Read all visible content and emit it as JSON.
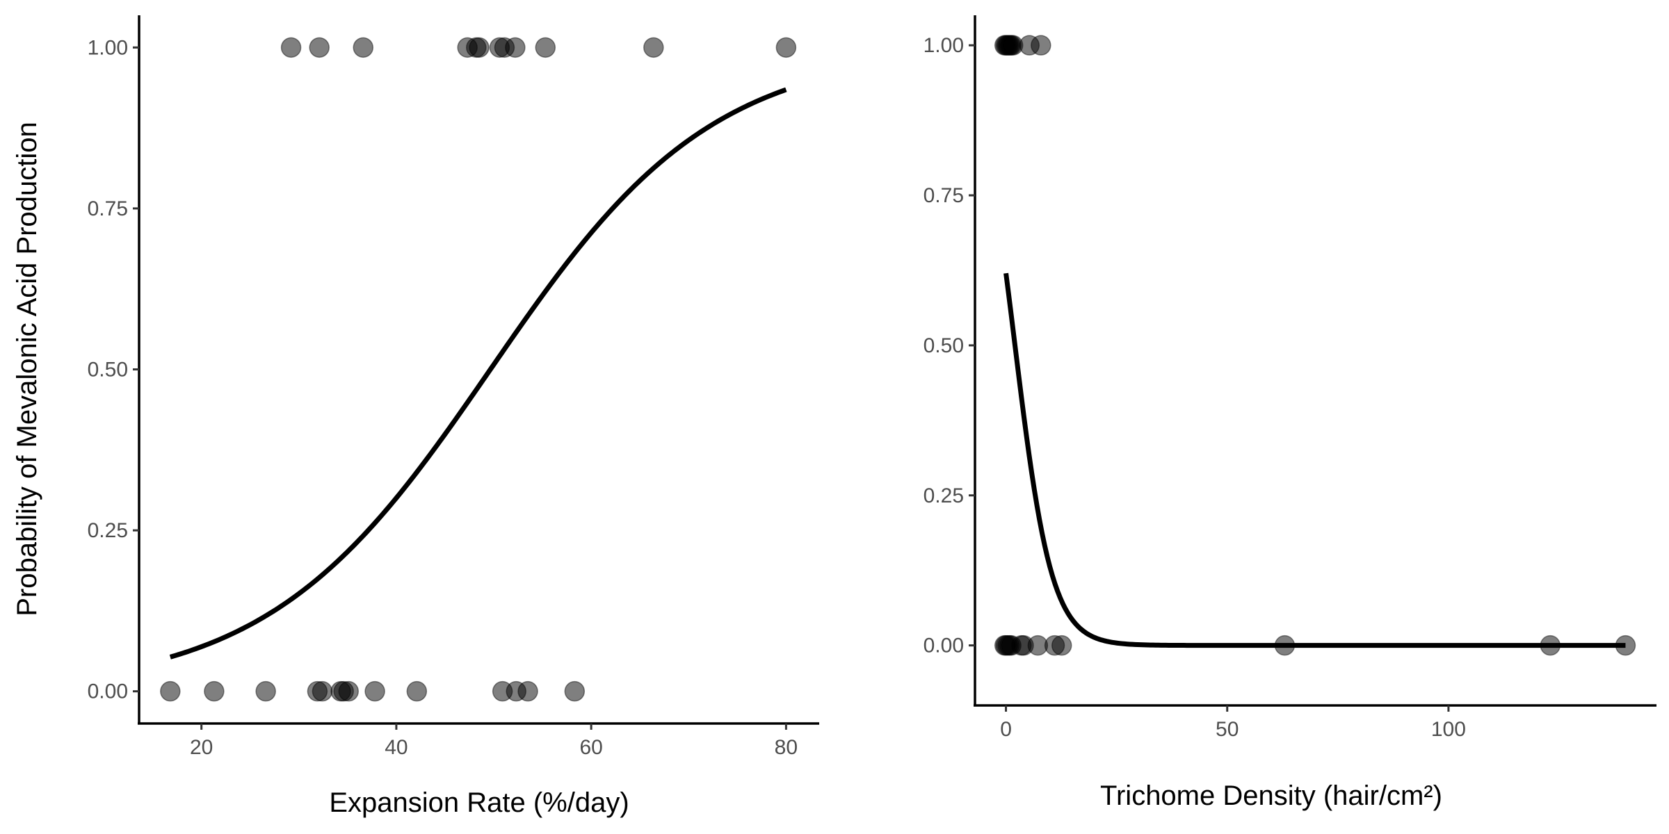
{
  "chart_data": [
    {
      "type": "scatter",
      "panel": "left",
      "xlabel": "Expansion Rate (%/day)",
      "ylabel": "Probability of Mevalonic Acid Production",
      "xlim": [
        13.6,
        83.4
      ],
      "ylim": [
        -0.05,
        1.05
      ],
      "x_ticks": [
        20,
        40,
        60,
        80
      ],
      "x_tick_labels": [
        "20",
        "40",
        "60",
        "80"
      ],
      "y_ticks": [
        0,
        0.25,
        0.5,
        0.75,
        1
      ],
      "y_tick_labels": [
        "0.00",
        "0.25",
        "0.50",
        "0.75",
        "1.00"
      ],
      "grid": false,
      "points": [
        {
          "x": 29.2,
          "y": 1
        },
        {
          "x": 32.1,
          "y": 1
        },
        {
          "x": 36.6,
          "y": 1
        },
        {
          "x": 47.3,
          "y": 1
        },
        {
          "x": 48.2,
          "y": 1
        },
        {
          "x": 48.5,
          "y": 1
        },
        {
          "x": 50.6,
          "y": 1
        },
        {
          "x": 51.1,
          "y": 1
        },
        {
          "x": 52.2,
          "y": 1
        },
        {
          "x": 55.3,
          "y": 1
        },
        {
          "x": 66.4,
          "y": 1
        },
        {
          "x": 80.0,
          "y": 1
        },
        {
          "x": 16.8,
          "y": 0
        },
        {
          "x": 21.3,
          "y": 0
        },
        {
          "x": 26.6,
          "y": 0
        },
        {
          "x": 31.9,
          "y": 0
        },
        {
          "x": 32.4,
          "y": 0
        },
        {
          "x": 34.3,
          "y": 0
        },
        {
          "x": 34.6,
          "y": 0
        },
        {
          "x": 35.1,
          "y": 0
        },
        {
          "x": 37.8,
          "y": 0
        },
        {
          "x": 42.1,
          "y": 0
        },
        {
          "x": 50.9,
          "y": 0
        },
        {
          "x": 52.3,
          "y": 0
        },
        {
          "x": 53.5,
          "y": 0
        },
        {
          "x": 58.3,
          "y": 0
        }
      ],
      "fit": {
        "type": "logistic",
        "intercept": -4.35,
        "slope": 0.0876,
        "x_range": [
          16.8,
          80.0
        ]
      }
    },
    {
      "type": "scatter",
      "panel": "right",
      "xlabel": "Trichome Density (hair/cm²)",
      "ylabel": "",
      "xlim": [
        -7.0,
        147.0
      ],
      "ylim": [
        -0.1,
        1.05
      ],
      "x_ticks": [
        0,
        50,
        100
      ],
      "x_tick_labels": [
        "0",
        "50",
        "100"
      ],
      "y_ticks": [
        0,
        0.25,
        0.5,
        0.75,
        1
      ],
      "y_tick_labels": [
        "0.00",
        "0.25",
        "0.50",
        "0.75",
        "1.00"
      ],
      "grid": false,
      "points": [
        {
          "x": -0.3,
          "y": 1
        },
        {
          "x": 0.0,
          "y": 1
        },
        {
          "x": 0.3,
          "y": 1
        },
        {
          "x": 0.6,
          "y": 1
        },
        {
          "x": 0.9,
          "y": 1
        },
        {
          "x": 1.2,
          "y": 1
        },
        {
          "x": 1.6,
          "y": 1
        },
        {
          "x": 5.3,
          "y": 1
        },
        {
          "x": 7.9,
          "y": 1
        },
        {
          "x": -0.3,
          "y": 0
        },
        {
          "x": 0.0,
          "y": 0
        },
        {
          "x": 0.4,
          "y": 0
        },
        {
          "x": 0.8,
          "y": 0
        },
        {
          "x": 1.2,
          "y": 0
        },
        {
          "x": 3.5,
          "y": 0
        },
        {
          "x": 4.0,
          "y": 0
        },
        {
          "x": 7.2,
          "y": 0
        },
        {
          "x": 11.0,
          "y": 0
        },
        {
          "x": 12.6,
          "y": 0
        },
        {
          "x": 63.0,
          "y": 0
        },
        {
          "x": 123.0,
          "y": 0
        },
        {
          "x": 140.0,
          "y": 0
        }
      ],
      "fit": {
        "type": "logistic",
        "intercept": 0.49,
        "slope": -0.24,
        "x_range": [
          0.0,
          140.0
        ]
      }
    }
  ]
}
